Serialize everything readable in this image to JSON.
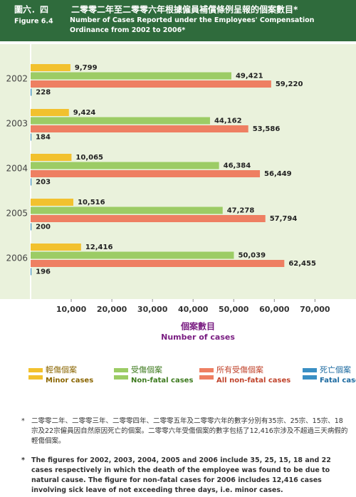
{
  "chart_data": {
    "type": "hbar",
    "figure_label": "圖六．四",
    "title_zh": "二零零二年至二零零六年根據僱員補償條例呈報的個案數目*",
    "figure_label_en": "Figure 6.4",
    "title": "Number of Cases Reported under the Employees' Compensation Ordinance from 2002 to 2006*",
    "categories": [
      "2002",
      "2003",
      "2004",
      "2005",
      "2006"
    ],
    "series": [
      {
        "name": "Minor cases",
        "name_zh": "輕傷個案",
        "color": "#f2c12e",
        "values": [
          9799,
          9424,
          10065,
          10516,
          12416
        ],
        "value_labels": [
          "9,799",
          "9,424",
          "10,065",
          "10,516",
          "12,416"
        ]
      },
      {
        "name": "Non-fatal cases",
        "name_zh": "受傷個案",
        "color": "#9ccc65",
        "values": [
          49421,
          44162,
          46384,
          47278,
          50039
        ],
        "value_labels": [
          "49,421",
          "44,162",
          "46,384",
          "47,278",
          "50,039"
        ]
      },
      {
        "name": "All non-fatal cases",
        "name_zh": "所有受傷個案",
        "color": "#ee7f62",
        "values": [
          59220,
          53586,
          56449,
          57794,
          62455
        ],
        "value_labels": [
          "59,220",
          "53,586",
          "56,449",
          "57,794",
          "62,455"
        ]
      },
      {
        "name": "Fatal cases",
        "name_zh": "死亡個案",
        "color": "#3a8fc4",
        "values": [
          228,
          184,
          203,
          200,
          196
        ],
        "value_labels": [
          "228",
          "184",
          "203",
          "200",
          "196"
        ]
      }
    ],
    "xlim": [
      0,
      78000
    ],
    "xticks": [
      {
        "value": 10000,
        "label": "10,000"
      },
      {
        "value": 20000,
        "label": "20,000"
      },
      {
        "value": 30000,
        "label": "30,000"
      },
      {
        "value": 40000,
        "label": "40,000"
      },
      {
        "value": 50000,
        "label": "50,000"
      },
      {
        "value": 60000,
        "label": "60,000"
      },
      {
        "value": 70000,
        "label": "70,000"
      }
    ],
    "xlabel_zh": "個案數目",
    "xlabel": "Number of cases",
    "footnotes": [
      {
        "marker": "*",
        "text": "二零零二年、二零零三年、二零零四年、二零零五年及二零零六年的數字分別有35宗、25宗、15宗、18宗及22宗僱員因自然原因死亡的個案。二零零六年受傷個案的數字包括了12,416宗涉及不超過三天病假的輕傷個案。"
      },
      {
        "marker": "*",
        "text": "The figures for 2002, 2003, 2004, 2005 and 2006 include 35, 25, 15, 18 and 22 cases respectively in which the death of the employee was found to be due to natural cause. The figure for non-fatal cases for 2006 includes 12,416 cases involving sick leave of not exceeding three days, i.e. minor cases."
      }
    ]
  }
}
